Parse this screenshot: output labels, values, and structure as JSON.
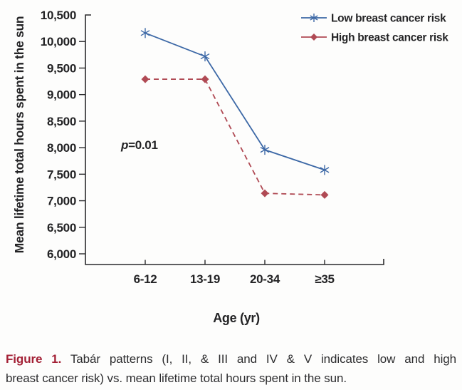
{
  "chart_data": {
    "type": "line",
    "categories": [
      "6-12",
      "13-19",
      "20-34",
      "≥35"
    ],
    "series": [
      {
        "name": "Low breast cancer risk",
        "values": [
          10160,
          9720,
          7960,
          7580
        ],
        "color": "#3c68a6",
        "marker": "asterisk",
        "line_style": "solid"
      },
      {
        "name": "High breast cancer risk",
        "values": [
          9290,
          9290,
          7140,
          7110
        ],
        "color": "#b04a54",
        "marker": "diamond",
        "line_style": "dashed"
      }
    ],
    "title": "",
    "xlabel": "Age (yr)",
    "ylabel": "Mean lifetime total hours spent in the sun",
    "ylim": [
      6000,
      10500
    ],
    "ytick_step": 500,
    "grid": false,
    "legend_position": "top-right",
    "annotation": {
      "italic": "p",
      "rest": "=0.01"
    }
  },
  "caption": {
    "label": "Figure 1.",
    "label_color": "#a32035",
    "line1": "Tabár patterns (I, II, & III and IV & V indicates low and high",
    "line2": "breast cancer risk) vs. mean lifetime total hours spent in the sun."
  },
  "colors": {
    "background": "#fdfdfc",
    "axis": "#2a2a2c",
    "chart_text": "#232325"
  }
}
